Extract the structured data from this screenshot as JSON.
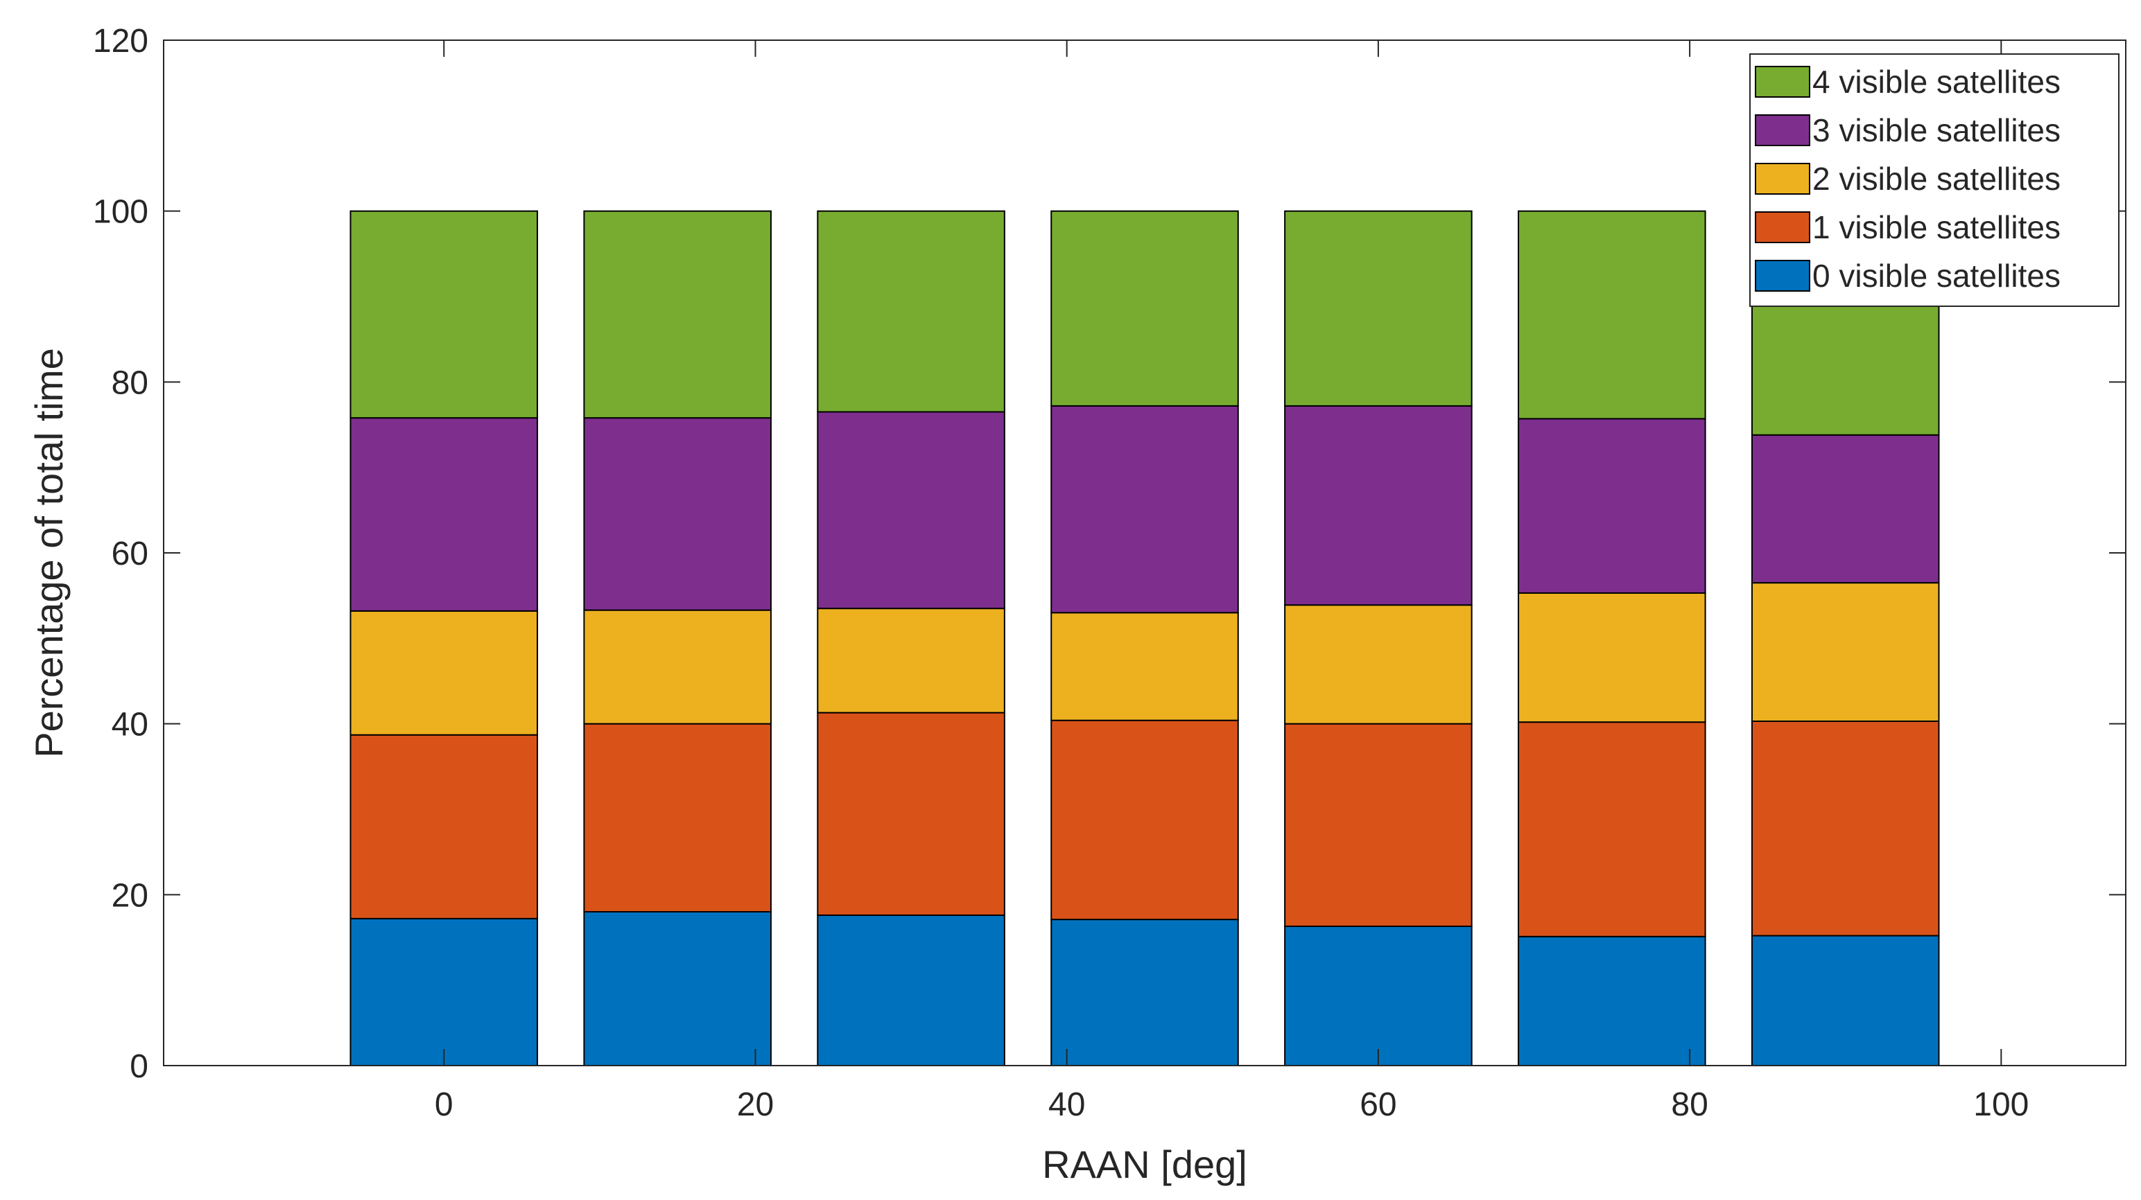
{
  "chart_data": {
    "type": "bar",
    "stacked": true,
    "title": "",
    "xlabel": "RAAN [deg]",
    "ylabel": "Percentage of total time",
    "x": [
      0,
      15,
      30,
      45,
      60,
      75,
      90
    ],
    "xlim": [
      -18,
      108
    ],
    "ylim": [
      0,
      120
    ],
    "xticks": [
      0,
      20,
      40,
      60,
      80,
      100
    ],
    "yticks": [
      0,
      20,
      40,
      60,
      80,
      100,
      120
    ],
    "legend_location": "top-right",
    "series": [
      {
        "name": "0 visible satellites",
        "color": "#0072BD",
        "values": [
          17.2,
          18.0,
          17.6,
          17.1,
          16.3,
          15.1,
          15.2
        ]
      },
      {
        "name": "1 visible satellites",
        "color": "#D95319",
        "values": [
          21.5,
          22.0,
          23.7,
          23.3,
          23.7,
          25.1,
          25.1
        ]
      },
      {
        "name": "2 visible satellites",
        "color": "#EDB120",
        "values": [
          14.5,
          13.3,
          12.2,
          12.6,
          13.9,
          15.1,
          16.2
        ]
      },
      {
        "name": "3 visible satellites",
        "color": "#7E2F8E",
        "values": [
          22.6,
          22.5,
          23.0,
          24.2,
          23.3,
          20.4,
          17.3
        ]
      },
      {
        "name": "4 visible satellites",
        "color": "#77AC30",
        "values": [
          24.2,
          24.2,
          23.5,
          22.8,
          22.8,
          24.3,
          26.2
        ]
      }
    ]
  }
}
